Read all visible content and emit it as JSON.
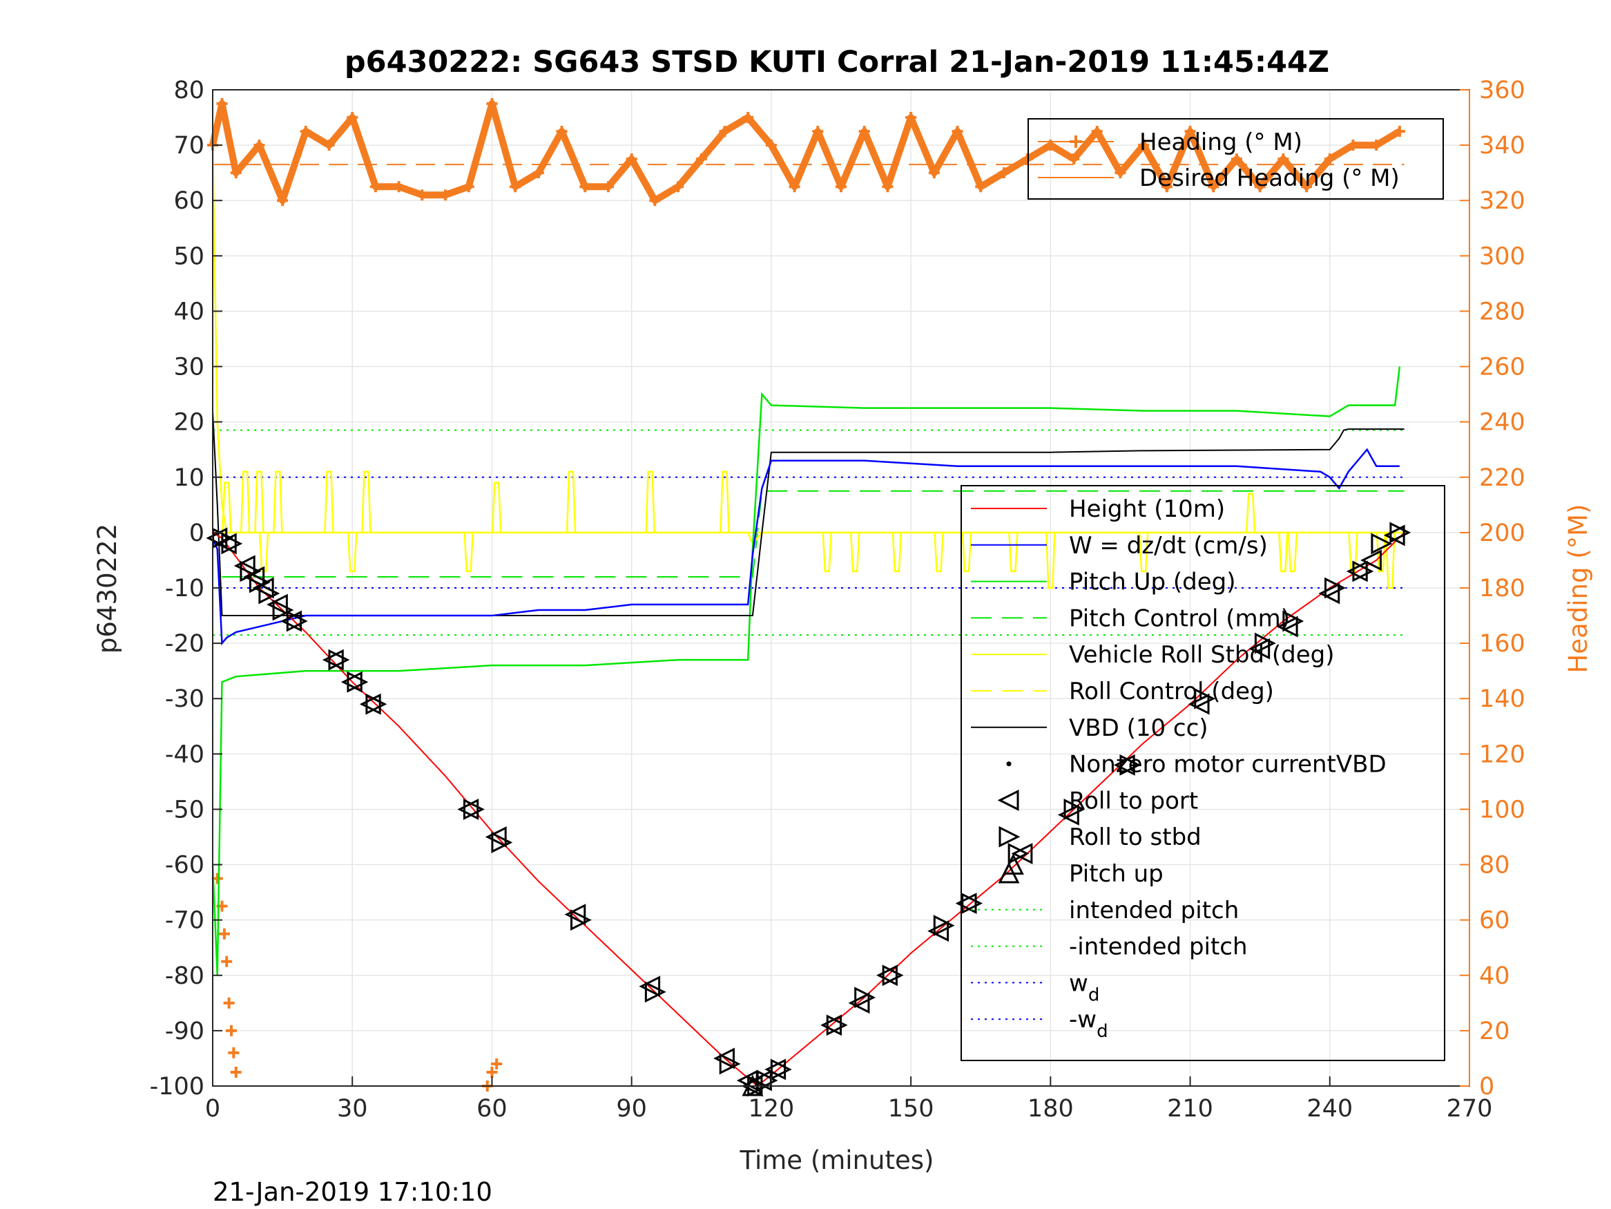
{
  "chart_data": {
    "type": "line",
    "title": "p6430222: SG643 STSD KUTI Corral 21-Jan-2019 11:45:44Z",
    "xlabel": "Time (minutes)",
    "ylabel_left": "p6430222",
    "ylabel_right": "Heading (°M)",
    "xlim": [
      0,
      270
    ],
    "ylim_left": [
      -100,
      80
    ],
    "ylim_right": [
      0,
      360
    ],
    "x_ticks": [
      "0",
      "30",
      "60",
      "90",
      "120",
      "150",
      "180",
      "210",
      "240",
      "270"
    ],
    "y_ticks_left": [
      "-100",
      "-90",
      "-80",
      "-70",
      "-60",
      "-50",
      "-40",
      "-30",
      "-20",
      "-10",
      "0",
      "10",
      "20",
      "30",
      "40",
      "50",
      "60",
      "70",
      "80"
    ],
    "y_ticks_right": [
      "0",
      "20",
      "40",
      "60",
      "80",
      "100",
      "120",
      "140",
      "160",
      "180",
      "200",
      "220",
      "240",
      "260",
      "280",
      "300",
      "320",
      "340",
      "360"
    ],
    "grid": true,
    "footer": "21-Jan-2019 17:10:10",
    "colors": {
      "height": "#ff0000",
      "w": "#0000ff",
      "pitch": "#00e600",
      "roll": "#ffff00",
      "vbd": "#000000",
      "heading": "#f47c20"
    },
    "legend_heading": [
      {
        "label": "Heading (° M)",
        "style": "heading-plus"
      },
      {
        "label": "Desired Heading (° M)",
        "style": "heading-line"
      }
    ],
    "legend_main": [
      {
        "label": "Height (10m)",
        "style": "red-line"
      },
      {
        "label": "W = dz/dt (cm/s)",
        "style": "blue-line"
      },
      {
        "label": "Pitch Up (deg)",
        "style": "green-line"
      },
      {
        "label": "Pitch Control (mm)",
        "style": "green-dash"
      },
      {
        "label": "Vehicle Roll Stbd (deg)",
        "style": "yellow-line"
      },
      {
        "label": "Roll Control (deg)",
        "style": "yellow-dash"
      },
      {
        "label": "VBD (10 cc)",
        "style": "black-line"
      },
      {
        "label": "Nonzero motor currentVBD",
        "style": "dot"
      },
      {
        "label": "Roll to port",
        "style": "tri-left"
      },
      {
        "label": "Roll to stbd",
        "style": "tri-right"
      },
      {
        "label": "Pitch up",
        "style": "tri-up"
      },
      {
        "label": "intended pitch",
        "style": "green-dot"
      },
      {
        "label": "-intended pitch",
        "style": "green-dot"
      },
      {
        "label": "w",
        "sub": "d",
        "style": "blue-dot"
      },
      {
        "label": "-w",
        "sub": "d",
        "style": "blue-dot"
      }
    ],
    "series": [
      {
        "name": "Height (10m)",
        "axis": "left",
        "x": [
          0,
          2,
          10,
          20,
          30,
          40,
          50,
          60,
          70,
          80,
          90,
          100,
          110,
          117,
          120,
          130,
          140,
          150,
          160,
          170,
          180,
          190,
          200,
          210,
          220,
          230,
          240,
          250,
          256
        ],
        "y": [
          0,
          -1,
          -10,
          -18,
          -27,
          -35,
          -44,
          -54,
          -63,
          -71,
          -79,
          -87,
          -95,
          -100,
          -98,
          -91,
          -84,
          -76,
          -69,
          -62,
          -54,
          -46,
          -38,
          -31,
          -23,
          -16,
          -10,
          -5,
          0
        ]
      },
      {
        "name": "W = dz/dt (cm/s)",
        "axis": "left",
        "x": [
          0,
          1,
          2,
          3,
          5,
          10,
          20,
          30,
          40,
          50,
          60,
          70,
          80,
          90,
          100,
          110,
          115,
          116,
          118,
          120,
          125,
          140,
          160,
          180,
          200,
          220,
          238,
          240,
          242,
          244,
          246,
          248,
          250,
          255
        ],
        "y": [
          -1,
          -3,
          -20,
          -19,
          -18,
          -17,
          -15,
          -15,
          -15,
          -15,
          -15,
          -14,
          -14,
          -13,
          -13,
          -13,
          -13,
          -4,
          8,
          13,
          13,
          13,
          12,
          12,
          12,
          12,
          11,
          10,
          8,
          11,
          13,
          15,
          12,
          12
        ]
      },
      {
        "name": "Pitch Up (deg)",
        "axis": "left",
        "x": [
          0,
          1,
          2,
          5,
          20,
          40,
          60,
          80,
          100,
          115,
          116,
          118,
          120,
          140,
          160,
          180,
          200,
          220,
          240,
          244,
          250,
          254,
          255
        ],
        "y": [
          -60,
          -80,
          -27,
          -26,
          -25,
          -25,
          -24,
          -24,
          -23,
          -23,
          -3,
          25,
          23,
          22.5,
          22.5,
          22.5,
          22,
          22,
          21,
          23,
          23,
          23,
          30
        ]
      },
      {
        "name": "Pitch Control (mm)",
        "axis": "left",
        "x": [
          2,
          116,
          118,
          256
        ],
        "y": [
          -8,
          -8,
          7.5,
          7.5
        ]
      },
      {
        "name": "Vehicle Roll Stbd (deg)",
        "axis": "left",
        "x": [
          0,
          1,
          2,
          3,
          115,
          116,
          118,
          120,
          256
        ],
        "y": [
          70,
          20,
          5,
          0,
          0,
          -2,
          0,
          0,
          0
        ],
        "spikes": [
          [
            3,
            9
          ],
          [
            7,
            11
          ],
          [
            10,
            11
          ],
          [
            11,
            -7
          ],
          [
            14,
            11
          ],
          [
            25,
            11
          ],
          [
            30,
            -7
          ],
          [
            33,
            11
          ],
          [
            55,
            -7
          ],
          [
            61,
            9
          ],
          [
            77,
            11
          ],
          [
            94,
            11
          ],
          [
            110,
            11
          ],
          [
            132,
            -7
          ],
          [
            138,
            -7
          ],
          [
            147,
            -7
          ],
          [
            156,
            -7
          ],
          [
            162,
            -7
          ],
          [
            172,
            -7
          ],
          [
            180,
            -10
          ],
          [
            200,
            -7
          ],
          [
            223,
            7
          ],
          [
            230,
            -7
          ],
          [
            230,
            -7
          ],
          [
            232,
            -7
          ],
          [
            245,
            -7
          ],
          [
            251,
            -7
          ],
          [
            253,
            -10
          ]
        ]
      },
      {
        "name": "Roll Control (deg)",
        "axis": "left",
        "x": [
          0,
          256
        ],
        "y": [
          0,
          0
        ]
      },
      {
        "name": "VBD (10 cc)",
        "axis": "left",
        "x": [
          0,
          1,
          2,
          115,
          116,
          118,
          120,
          180,
          200,
          240,
          241,
          242,
          243,
          244,
          256
        ],
        "y": [
          22,
          5,
          -15,
          -15,
          -15,
          0,
          14.5,
          14.5,
          14.8,
          15,
          16,
          17,
          18.5,
          18.7,
          18.7
        ]
      },
      {
        "name": "Heading (° M)",
        "axis": "right",
        "x": [
          0,
          2,
          5,
          10,
          15,
          20,
          25,
          30,
          35,
          40,
          45,
          50,
          55,
          60,
          65,
          70,
          75,
          80,
          85,
          90,
          95,
          100,
          105,
          110,
          115,
          120,
          125,
          130,
          135,
          140,
          145,
          150,
          155,
          160,
          165,
          170,
          175,
          180,
          185,
          190,
          195,
          200,
          205,
          210,
          215,
          220,
          225,
          230,
          235,
          240,
          245,
          250,
          255
        ],
        "y": [
          340,
          355,
          330,
          340,
          320,
          345,
          340,
          350,
          325,
          325,
          322,
          322,
          325,
          355,
          325,
          330,
          345,
          325,
          325,
          335,
          320,
          325,
          335,
          345,
          350,
          340,
          325,
          345,
          325,
          345,
          325,
          350,
          330,
          345,
          325,
          330,
          335,
          340,
          335,
          345,
          330,
          340,
          325,
          345,
          325,
          335,
          325,
          335,
          325,
          335,
          340,
          340,
          345
        ]
      },
      {
        "name": "Desired Heading (° M)",
        "axis": "right",
        "x": [
          0,
          256
        ],
        "y": [
          333,
          333
        ]
      },
      {
        "name": "intended pitch",
        "axis": "left",
        "x": [
          0,
          256
        ],
        "y": [
          18.5,
          18.5
        ]
      },
      {
        "name": "-intended pitch",
        "axis": "left",
        "x": [
          0,
          256
        ],
        "y": [
          -18.5,
          -18.5
        ]
      },
      {
        "name": "w_d",
        "axis": "left",
        "x": [
          0,
          256
        ],
        "y": [
          10,
          10
        ]
      },
      {
        "name": "-w_d",
        "axis": "left",
        "x": [
          0,
          256
        ],
        "y": [
          -10,
          -10
        ]
      }
    ],
    "markers_roll_port": [
      [
        1,
        -1
      ],
      [
        3,
        -2
      ],
      [
        7,
        -6
      ],
      [
        9,
        -8
      ],
      [
        11,
        -10
      ],
      [
        14,
        -13
      ],
      [
        17,
        -16
      ],
      [
        26,
        -23
      ],
      [
        30,
        -27
      ],
      [
        34,
        -31
      ],
      [
        55,
        -50
      ],
      [
        61,
        -55
      ],
      [
        78,
        -69
      ],
      [
        94,
        -82
      ],
      [
        110,
        -95
      ],
      [
        115,
        -99
      ],
      [
        116,
        -100
      ],
      [
        118,
        -99
      ],
      [
        121,
        -97
      ],
      [
        133,
        -89
      ],
      [
        139,
        -85
      ],
      [
        145,
        -80
      ],
      [
        156,
        -72
      ],
      [
        162,
        -67
      ],
      [
        174,
        -58
      ],
      [
        184,
        -51
      ],
      [
        196,
        -42
      ],
      [
        212,
        -31
      ],
      [
        225,
        -21
      ],
      [
        231,
        -17
      ],
      [
        240,
        -11
      ],
      [
        246,
        -7
      ],
      [
        249,
        -5
      ],
      [
        254,
        -0.5
      ]
    ],
    "markers_roll_stbd": [
      [
        2,
        -1
      ],
      [
        4,
        -2
      ],
      [
        8,
        -7
      ],
      [
        10,
        -9
      ],
      [
        12,
        -11
      ],
      [
        15,
        -14
      ],
      [
        18,
        -16
      ],
      [
        27,
        -23
      ],
      [
        31,
        -27
      ],
      [
        35,
        -31
      ],
      [
        56,
        -50
      ],
      [
        62,
        -56
      ],
      [
        79,
        -70
      ],
      [
        95,
        -83
      ],
      [
        111,
        -96
      ],
      [
        117,
        -100
      ],
      [
        119,
        -99
      ],
      [
        122,
        -97
      ],
      [
        134,
        -89
      ],
      [
        140,
        -84
      ],
      [
        146,
        -80
      ],
      [
        157,
        -71
      ],
      [
        163,
        -67
      ],
      [
        173,
        -58
      ],
      [
        185,
        -50
      ],
      [
        197,
        -42
      ],
      [
        213,
        -30
      ],
      [
        226,
        -20
      ],
      [
        232,
        -16
      ],
      [
        241,
        -10
      ],
      [
        247,
        -7
      ],
      [
        251,
        -2
      ],
      [
        255,
        0
      ]
    ],
    "markers_pitch_up": [
      [
        116,
        -100
      ],
      [
        172,
        -60
      ]
    ],
    "heading_low_cluster": [
      [
        1,
        75
      ],
      [
        2,
        65
      ],
      [
        2.5,
        55
      ],
      [
        3,
        45
      ],
      [
        3.5,
        30
      ],
      [
        4,
        20
      ],
      [
        4.5,
        12
      ],
      [
        5,
        5
      ],
      [
        59,
        0
      ],
      [
        60,
        5
      ],
      [
        61,
        8
      ]
    ]
  }
}
